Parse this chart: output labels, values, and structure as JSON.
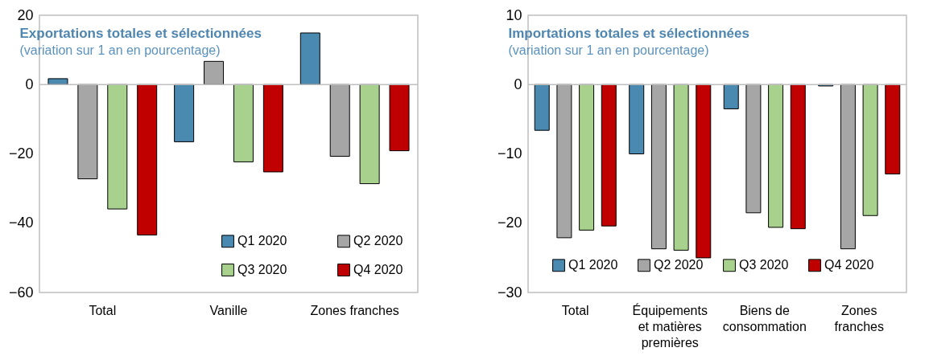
{
  "chart_data": [
    {
      "type": "bar",
      "title": "Exportations totales et sélectionnées",
      "subtitle": "(variation sur 1 an en pourcentage)",
      "categories": [
        "Total",
        "Vanille",
        "Zones franches"
      ],
      "series": [
        {
          "name": "Q1 2020",
          "color": "#4a89b0",
          "values": [
            1.7,
            -16.5,
            14.9
          ]
        },
        {
          "name": "Q2 2020",
          "color": "#a6a6a6",
          "values": [
            -27.2,
            6.7,
            -20.7
          ]
        },
        {
          "name": "Q3 2020",
          "color": "#a9d18e",
          "values": [
            -35.9,
            -22.3,
            -28.6
          ]
        },
        {
          "name": "Q4 2020",
          "color": "#c00000",
          "values": [
            -43.4,
            -25.2,
            -19.1
          ]
        }
      ],
      "ylim": [
        -60,
        20
      ],
      "yticks": [
        -60,
        -40,
        -20,
        0,
        20
      ],
      "legend": "bottom right",
      "ref_lines": [
        {
          "axis": "y",
          "value": 0,
          "color": "#bfbfbf"
        }
      ]
    },
    {
      "type": "bar",
      "title": "Importations totales et sélectionnées",
      "subtitle": "(variation sur 1 an en pourcentage)",
      "categories": [
        "Total",
        "Équipements et matières premières",
        "Biens de consommation",
        "Zones franches"
      ],
      "series": [
        {
          "name": "Q1 2020",
          "color": "#4a89b0",
          "values": [
            -6.6,
            -10.0,
            -3.5,
            -0.2
          ]
        },
        {
          "name": "Q2 2020",
          "color": "#a6a6a6",
          "values": [
            -22.1,
            -23.7,
            -18.5,
            -23.7
          ]
        },
        {
          "name": "Q3 2020",
          "color": "#a9d18e",
          "values": [
            -21.0,
            -23.9,
            -20.6,
            -18.9
          ]
        },
        {
          "name": "Q4 2020",
          "color": "#c00000",
          "values": [
            -20.4,
            -25.0,
            -20.8,
            -12.9
          ]
        }
      ],
      "ylim": [
        -30,
        10
      ],
      "yticks": [
        -30,
        -20,
        -10,
        0,
        10
      ],
      "legend": "bottom",
      "ref_lines": [
        {
          "axis": "y",
          "value": 0,
          "color": "#bfbfbf"
        }
      ]
    }
  ]
}
